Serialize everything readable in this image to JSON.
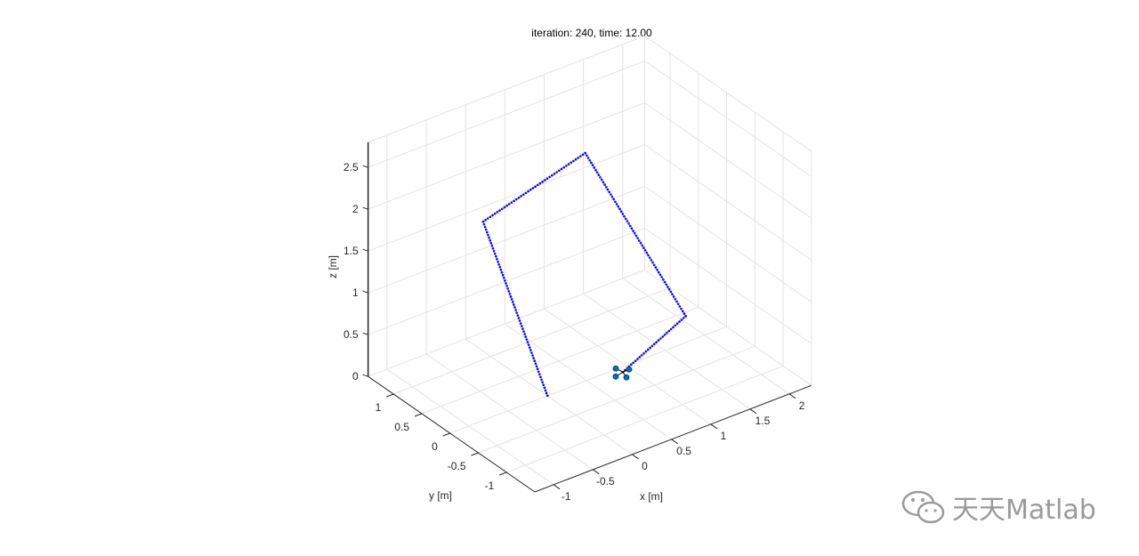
{
  "chart_data": {
    "type": "line3d",
    "title": "iteration: 240, time: 12.00",
    "xlabel": "x [m]",
    "ylabel": "y [m]",
    "zlabel": "z [m]",
    "xlim": [
      -1.24,
      2.28
    ],
    "ylim": [
      -1.5,
      1.45
    ],
    "zlim": [
      0,
      2.8
    ],
    "xticks": [
      -1,
      -0.5,
      0,
      0.5,
      1,
      1.5,
      2
    ],
    "yticks": [
      -1,
      -0.5,
      0,
      0.5,
      1
    ],
    "zticks": [
      0,
      0.5,
      1,
      1.5,
      2,
      2.5
    ],
    "grid": true,
    "trajectory_waypoints": [
      [
        0,
        0,
        0
      ],
      [
        -0.1,
        1,
        1.65
      ],
      [
        1.2,
        1,
        2.0
      ],
      [
        1.4,
        -0.5,
        0.68
      ],
      [
        0.6,
        -0.5,
        0.3
      ]
    ],
    "trajectory_color": "#0000ff",
    "reference_color": "#ff0000",
    "drone_position": [
      0.6,
      -0.5,
      0.3
    ],
    "drone_color": "#0072bd"
  },
  "watermark": "天天Matlab"
}
